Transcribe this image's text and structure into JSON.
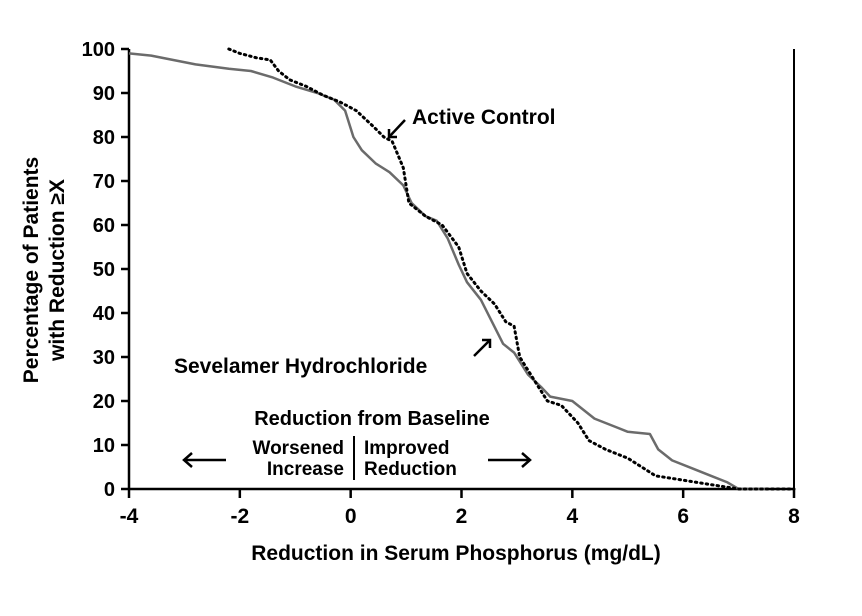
{
  "chart_data": {
    "type": "line",
    "xlabel": "Reduction in Serum Phosphorus (mg/dL)",
    "ylabel_lines": [
      "Percentage of Patients",
      "with Reduction ≥X"
    ],
    "xlim": [
      -4,
      8
    ],
    "ylim": [
      0,
      100
    ],
    "x_ticks": [
      "-4",
      "-2",
      "0",
      "2",
      "4",
      "6",
      "8"
    ],
    "y_ticks": [
      "0",
      "10",
      "20",
      "30",
      "40",
      "50",
      "60",
      "70",
      "80",
      "90",
      "100"
    ],
    "grid": false,
    "series": [
      {
        "name": "Sevelamer Hydrochloride",
        "style": "solid",
        "color": "#6b6b6b",
        "points": [
          [
            -4.0,
            99
          ],
          [
            -3.6,
            98.5
          ],
          [
            -3.2,
            97.5
          ],
          [
            -2.8,
            96.5
          ],
          [
            -2.2,
            95.5
          ],
          [
            -1.8,
            95
          ],
          [
            -1.4,
            93.5
          ],
          [
            -1.0,
            91.5
          ],
          [
            -0.6,
            90
          ],
          [
            -0.3,
            88.5
          ],
          [
            -0.1,
            86
          ],
          [
            0.05,
            80
          ],
          [
            0.2,
            77
          ],
          [
            0.45,
            74
          ],
          [
            0.7,
            72
          ],
          [
            0.95,
            69
          ],
          [
            1.1,
            65
          ],
          [
            1.35,
            62
          ],
          [
            1.55,
            61
          ],
          [
            1.75,
            57
          ],
          [
            1.95,
            51
          ],
          [
            2.1,
            47
          ],
          [
            2.35,
            43
          ],
          [
            2.55,
            38
          ],
          [
            2.75,
            33
          ],
          [
            2.95,
            31
          ],
          [
            3.2,
            26
          ],
          [
            3.45,
            23
          ],
          [
            3.6,
            21
          ],
          [
            4.0,
            20
          ],
          [
            4.4,
            16
          ],
          [
            4.8,
            14
          ],
          [
            5.0,
            13
          ],
          [
            5.4,
            12.5
          ],
          [
            5.55,
            9
          ],
          [
            5.8,
            6.5
          ],
          [
            6.2,
            4.5
          ],
          [
            6.5,
            3
          ],
          [
            6.8,
            1.5
          ],
          [
            7.0,
            0
          ],
          [
            7.5,
            0
          ]
        ]
      },
      {
        "name": "Active Control",
        "style": "dotted",
        "color": "#000000",
        "points": [
          [
            -2.2,
            100
          ],
          [
            -2.0,
            99
          ],
          [
            -1.7,
            98
          ],
          [
            -1.45,
            97.5
          ],
          [
            -1.3,
            95
          ],
          [
            -1.1,
            93
          ],
          [
            -0.8,
            91.5
          ],
          [
            -0.5,
            89.5
          ],
          [
            -0.2,
            88
          ],
          [
            0.1,
            86
          ],
          [
            0.4,
            82.5
          ],
          [
            0.6,
            80
          ],
          [
            0.75,
            79
          ],
          [
            0.85,
            76
          ],
          [
            0.95,
            73
          ],
          [
            1.05,
            65
          ],
          [
            1.35,
            62
          ],
          [
            1.65,
            60
          ],
          [
            1.95,
            55
          ],
          [
            2.1,
            49
          ],
          [
            2.35,
            45
          ],
          [
            2.6,
            42
          ],
          [
            2.8,
            38
          ],
          [
            2.95,
            37
          ],
          [
            3.05,
            30
          ],
          [
            3.3,
            25
          ],
          [
            3.55,
            20
          ],
          [
            3.8,
            19
          ],
          [
            4.1,
            15
          ],
          [
            4.3,
            11
          ],
          [
            4.6,
            9
          ],
          [
            5.0,
            7
          ],
          [
            5.5,
            3
          ],
          [
            6.0,
            2
          ],
          [
            6.5,
            1
          ],
          [
            7.0,
            0
          ],
          [
            7.5,
            0
          ],
          [
            8.0,
            0
          ]
        ]
      }
    ],
    "annotations": {
      "active_control_label": "Active Control",
      "sevelamer_label": "Sevelamer Hydrochloride",
      "reduction_header": "Reduction from Baseline",
      "worsened": "Worsened",
      "increase": "Increase",
      "improved": "Improved",
      "reduction": "Reduction"
    }
  }
}
